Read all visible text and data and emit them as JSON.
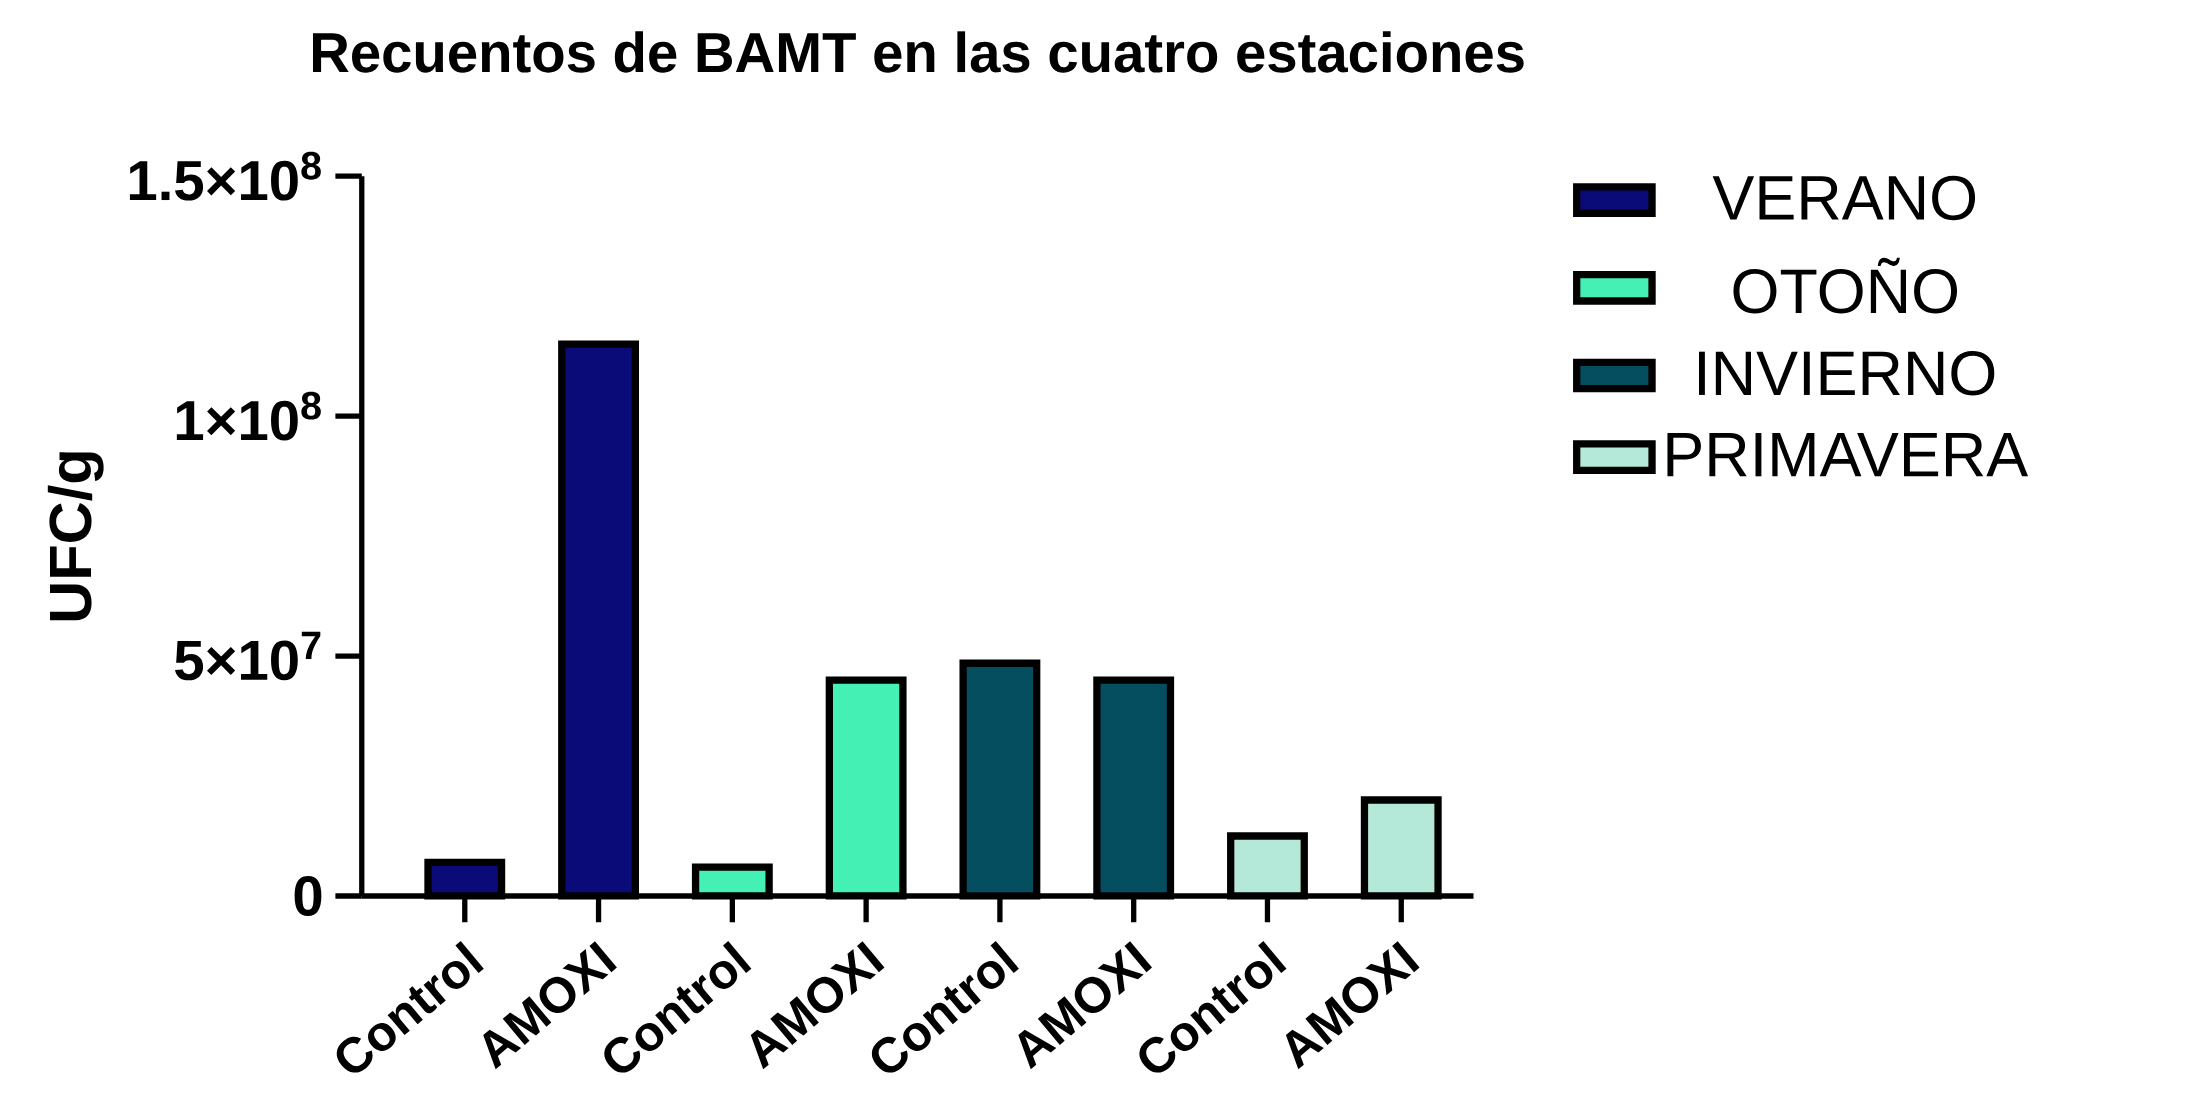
{
  "chart_data": {
    "type": "bar",
    "title": "Recuentos de BAMT en las cuatro estaciones",
    "ylabel": "UFC/g",
    "categories": [
      "Control",
      "AMOXI",
      "Control",
      "AMOXI",
      "Control",
      "AMOXI",
      "Control",
      "AMOXI"
    ],
    "series": [
      {
        "name": "VERANO",
        "color": "#0a0a78",
        "values": [
          7000000,
          115000000,
          null,
          null,
          null,
          null,
          null,
          null
        ]
      },
      {
        "name": "OTOÑO",
        "color": "#44f0b4",
        "values": [
          null,
          null,
          6000000,
          45000000,
          null,
          null,
          null,
          null
        ]
      },
      {
        "name": "INVIERNO",
        "color": "#044e60",
        "values": [
          null,
          null,
          null,
          null,
          48500000,
          45000000,
          null,
          null
        ]
      },
      {
        "name": "PRIMAVERA",
        "color": "#b4e8d8",
        "values": [
          null,
          null,
          null,
          null,
          null,
          null,
          12500000,
          20000000
        ]
      }
    ],
    "ylim": [
      0,
      150000000
    ],
    "yticks": [
      {
        "value": 0,
        "label": "0"
      },
      {
        "value": 50000000,
        "label": "5×10$^{7}$"
      },
      {
        "value": 100000000,
        "label": "1×10$^{8}$"
      },
      {
        "value": 150000000,
        "label": "1.5×10$^{8}$"
      }
    ],
    "legend": "right"
  }
}
